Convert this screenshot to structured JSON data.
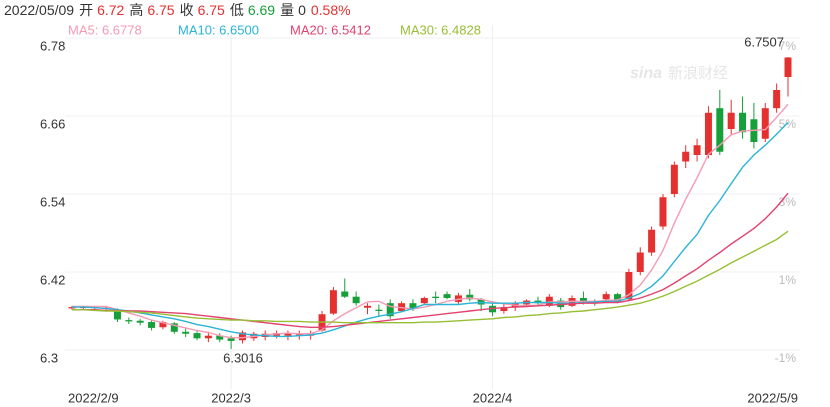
{
  "quote": {
    "date": "2022/05/09",
    "items": [
      {
        "label": "开",
        "value": "6.72",
        "color": "#e4302f"
      },
      {
        "label": "高",
        "value": "6.75",
        "color": "#e4302f"
      },
      {
        "label": "收",
        "value": "6.75",
        "color": "#e4302f"
      },
      {
        "label": "低",
        "value": "6.69",
        "color": "#17a03a"
      },
      {
        "label": "量",
        "value": "0",
        "color": "#333333"
      }
    ],
    "change": "0.58%",
    "change_color": "#e4302f"
  },
  "watermark": {
    "brand": "sina",
    "name": "新浪财经"
  },
  "chart_data": {
    "type": "candlestick",
    "categories": [
      "2022/2/9",
      null,
      null,
      null,
      null,
      null,
      null,
      null,
      null,
      null,
      null,
      null,
      null,
      null,
      "2022/3",
      null,
      null,
      null,
      null,
      null,
      null,
      null,
      null,
      null,
      null,
      null,
      null,
      null,
      null,
      null,
      null,
      null,
      null,
      null,
      null,
      null,
      null,
      "2022/4",
      null,
      null,
      null,
      null,
      null,
      null,
      null,
      null,
      null,
      null,
      null,
      null,
      null,
      null,
      null,
      null,
      null,
      null,
      null,
      null,
      null,
      null,
      null,
      null,
      null,
      "2022/5/9"
    ],
    "open": [
      6.364,
      6.365,
      6.365,
      6.364,
      6.362,
      6.346,
      6.345,
      6.343,
      6.335,
      6.341,
      6.328,
      6.326,
      6.318,
      6.322,
      6.318,
      6.315,
      6.318,
      6.32,
      6.322,
      6.322,
      6.322,
      6.322,
      6.33,
      6.356,
      6.39,
      6.382,
      6.365,
      6.362,
      6.372,
      6.36,
      6.372,
      6.372,
      6.382,
      6.386,
      6.374,
      6.385,
      6.378,
      6.368,
      6.36,
      6.366,
      6.37,
      6.376,
      6.368,
      6.376,
      6.368,
      6.38,
      6.374,
      6.378,
      6.386,
      6.378,
      6.42,
      6.45,
      6.49,
      6.54,
      6.59,
      6.6,
      6.6,
      6.672,
      6.64,
      6.665,
      6.655,
      6.625,
      6.672,
      6.72
    ],
    "high": [
      6.368,
      6.368,
      6.368,
      6.367,
      6.364,
      6.35,
      6.348,
      6.346,
      6.345,
      6.343,
      6.333,
      6.33,
      6.328,
      6.326,
      6.322,
      6.33,
      6.328,
      6.33,
      6.33,
      6.33,
      6.33,
      6.33,
      6.36,
      6.397,
      6.41,
      6.39,
      6.372,
      6.37,
      6.378,
      6.375,
      6.378,
      6.382,
      6.39,
      6.39,
      6.388,
      6.394,
      6.38,
      6.375,
      6.372,
      6.375,
      6.378,
      6.382,
      6.386,
      6.38,
      6.384,
      6.39,
      6.378,
      6.39,
      6.388,
      6.425,
      6.458,
      6.49,
      6.54,
      6.59,
      6.615,
      6.625,
      6.675,
      6.7,
      6.685,
      6.69,
      6.68,
      6.68,
      6.71,
      6.7507
    ],
    "low": [
      6.362,
      6.362,
      6.362,
      6.361,
      6.343,
      6.34,
      6.338,
      6.33,
      6.332,
      6.325,
      6.32,
      6.315,
      6.312,
      6.312,
      6.3016,
      6.31,
      6.314,
      6.315,
      6.318,
      6.315,
      6.316,
      6.316,
      6.328,
      6.354,
      6.38,
      6.368,
      6.355,
      6.352,
      6.348,
      6.358,
      6.36,
      6.37,
      6.372,
      6.378,
      6.37,
      6.375,
      6.36,
      6.352,
      6.356,
      6.36,
      6.366,
      6.368,
      6.366,
      6.362,
      6.366,
      6.37,
      6.368,
      6.375,
      6.372,
      6.375,
      6.415,
      6.445,
      6.485,
      6.535,
      6.58,
      6.59,
      6.595,
      6.6,
      6.63,
      6.625,
      6.61,
      6.62,
      6.665,
      6.69
    ],
    "close": [
      6.366,
      6.366,
      6.366,
      6.365,
      6.347,
      6.344,
      6.342,
      6.334,
      6.343,
      6.328,
      6.325,
      6.318,
      6.322,
      6.316,
      6.314,
      6.327,
      6.325,
      6.325,
      6.326,
      6.326,
      6.324,
      6.326,
      6.355,
      6.392,
      6.382,
      6.372,
      6.368,
      6.36,
      6.352,
      6.372,
      6.364,
      6.38,
      6.38,
      6.38,
      6.384,
      6.378,
      6.37,
      6.358,
      6.366,
      6.372,
      6.376,
      6.372,
      6.382,
      6.366,
      6.38,
      6.374,
      6.372,
      6.386,
      6.374,
      6.42,
      6.45,
      6.485,
      6.535,
      6.585,
      6.605,
      6.615,
      6.665,
      6.605,
      6.665,
      6.635,
      6.62,
      6.672,
      6.7,
      6.75
    ],
    "up_color": "#e4302f",
    "down_color": "#17a03a",
    "series": [
      {
        "name": "MA5: 6.6778",
        "color": "#f59ab5",
        "values": [
          6.367,
          6.367,
          6.367,
          6.367,
          6.362,
          6.357,
          6.352,
          6.346,
          6.342,
          6.338,
          6.334,
          6.33,
          6.327,
          6.322,
          6.319,
          6.319,
          6.321,
          6.323,
          6.325,
          6.326,
          6.325,
          6.325,
          6.331,
          6.345,
          6.356,
          6.365,
          6.374,
          6.375,
          6.367,
          6.365,
          6.363,
          6.366,
          6.37,
          6.375,
          6.378,
          6.38,
          6.378,
          6.374,
          6.371,
          6.369,
          6.368,
          6.369,
          6.374,
          6.374,
          6.375,
          6.375,
          6.375,
          6.376,
          6.377,
          6.385,
          6.4,
          6.423,
          6.453,
          6.495,
          6.532,
          6.565,
          6.601,
          6.615,
          6.631,
          6.637,
          6.638,
          6.639,
          6.658,
          6.6778
        ]
      },
      {
        "name": "MA10: 6.6500",
        "color": "#2ab4d6",
        "values": [
          6.366,
          6.366,
          6.365,
          6.364,
          6.362,
          6.36,
          6.357,
          6.354,
          6.351,
          6.348,
          6.344,
          6.339,
          6.336,
          6.332,
          6.328,
          6.325,
          6.323,
          6.322,
          6.321,
          6.321,
          6.322,
          6.323,
          6.326,
          6.331,
          6.337,
          6.343,
          6.348,
          6.352,
          6.355,
          6.359,
          6.364,
          6.37,
          6.37,
          6.37,
          6.37,
          6.372,
          6.373,
          6.372,
          6.372,
          6.372,
          6.373,
          6.373,
          6.373,
          6.372,
          6.372,
          6.373,
          6.374,
          6.375,
          6.375,
          6.38,
          6.387,
          6.398,
          6.414,
          6.436,
          6.458,
          6.478,
          6.507,
          6.53,
          6.556,
          6.581,
          6.6,
          6.615,
          6.632,
          6.65
        ]
      },
      {
        "name": "MA20: 6.5412",
        "color": "#e2426f",
        "values": [
          6.362,
          6.362,
          6.362,
          6.361,
          6.361,
          6.36,
          6.36,
          6.359,
          6.358,
          6.357,
          6.356,
          6.354,
          6.352,
          6.35,
          6.348,
          6.346,
          6.344,
          6.342,
          6.34,
          6.338,
          6.336,
          6.335,
          6.335,
          6.336,
          6.338,
          6.34,
          6.342,
          6.344,
          6.346,
          6.348,
          6.35,
          6.352,
          6.354,
          6.356,
          6.358,
          6.36,
          6.362,
          6.364,
          6.365,
          6.366,
          6.367,
          6.368,
          6.369,
          6.37,
          6.371,
          6.372,
          6.372,
          6.373,
          6.373,
          6.376,
          6.38,
          6.386,
          6.393,
          6.403,
          6.414,
          6.425,
          6.438,
          6.45,
          6.463,
          6.475,
          6.487,
          6.502,
          6.52,
          6.5412
        ]
      },
      {
        "name": "MA30: 6.4828",
        "color": "#98be34",
        "values": [
          6.362,
          6.362,
          6.361,
          6.36,
          6.36,
          6.359,
          6.358,
          6.357,
          6.355,
          6.353,
          6.351,
          6.349,
          6.348,
          6.347,
          6.346,
          6.346,
          6.345,
          6.345,
          6.344,
          6.344,
          6.344,
          6.343,
          6.343,
          6.343,
          6.342,
          6.342,
          6.342,
          6.342,
          6.342,
          6.342,
          6.342,
          6.343,
          6.343,
          6.344,
          6.345,
          6.346,
          6.347,
          6.348,
          6.35,
          6.351,
          6.353,
          6.354,
          6.356,
          6.357,
          6.359,
          6.36,
          6.362,
          6.364,
          6.366,
          6.369,
          6.372,
          6.377,
          6.383,
          6.39,
          6.398,
          6.406,
          6.415,
          6.424,
          6.434,
          6.443,
          6.452,
          6.461,
          6.47,
          6.4828
        ]
      }
    ],
    "ylim": [
      6.24,
      6.8
    ],
    "yticks": [
      6.3,
      6.42,
      6.54,
      6.66,
      6.78
    ],
    "y2lim": [
      -2,
      7.3333
    ],
    "y2ticks": [
      {
        "value": -1,
        "label": "-1%"
      },
      {
        "value": 1,
        "label": "1%"
      },
      {
        "value": 3,
        "label": "3%"
      },
      {
        "value": 5,
        "label": "5%"
      },
      {
        "value": 7,
        "label": "7%"
      }
    ],
    "grid": true
  }
}
